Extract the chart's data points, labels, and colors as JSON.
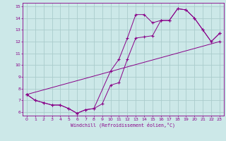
{
  "xlabel": "Windchill (Refroidissement éolien,°C)",
  "background_color": "#cce8e8",
  "grid_color": "#aacccc",
  "line_color": "#880088",
  "xlim": [
    -0.5,
    23.5
  ],
  "ylim": [
    5.7,
    15.3
  ],
  "xticks": [
    0,
    1,
    2,
    3,
    4,
    5,
    6,
    7,
    8,
    9,
    10,
    11,
    12,
    13,
    14,
    15,
    16,
    17,
    18,
    19,
    20,
    21,
    22,
    23
  ],
  "yticks": [
    6,
    7,
    8,
    9,
    10,
    11,
    12,
    13,
    14,
    15
  ],
  "line1_x": [
    0,
    1,
    2,
    3,
    4,
    5,
    6,
    7,
    8,
    9,
    10,
    11,
    12,
    13,
    14,
    15,
    16,
    17,
    18,
    19,
    20,
    21,
    22,
    23
  ],
  "line1_y": [
    7.5,
    7.0,
    6.8,
    6.6,
    6.6,
    6.3,
    5.9,
    6.2,
    6.3,
    6.7,
    8.3,
    8.5,
    10.5,
    12.3,
    12.4,
    12.5,
    13.8,
    13.8,
    14.8,
    14.7,
    14.0,
    13.0,
    12.0,
    12.7
  ],
  "line2_x": [
    0,
    1,
    2,
    3,
    4,
    5,
    6,
    7,
    8,
    10,
    11,
    12,
    13,
    14,
    15,
    16,
    17,
    18,
    19,
    20,
    21,
    22,
    23
  ],
  "line2_y": [
    7.5,
    7.0,
    6.8,
    6.6,
    6.6,
    6.3,
    5.9,
    6.2,
    6.3,
    9.5,
    10.5,
    12.3,
    14.3,
    14.3,
    13.6,
    13.8,
    13.8,
    14.8,
    14.7,
    14.0,
    13.0,
    12.0,
    12.7
  ],
  "line3_x": [
    0,
    23
  ],
  "line3_y": [
    7.5,
    12.0
  ]
}
